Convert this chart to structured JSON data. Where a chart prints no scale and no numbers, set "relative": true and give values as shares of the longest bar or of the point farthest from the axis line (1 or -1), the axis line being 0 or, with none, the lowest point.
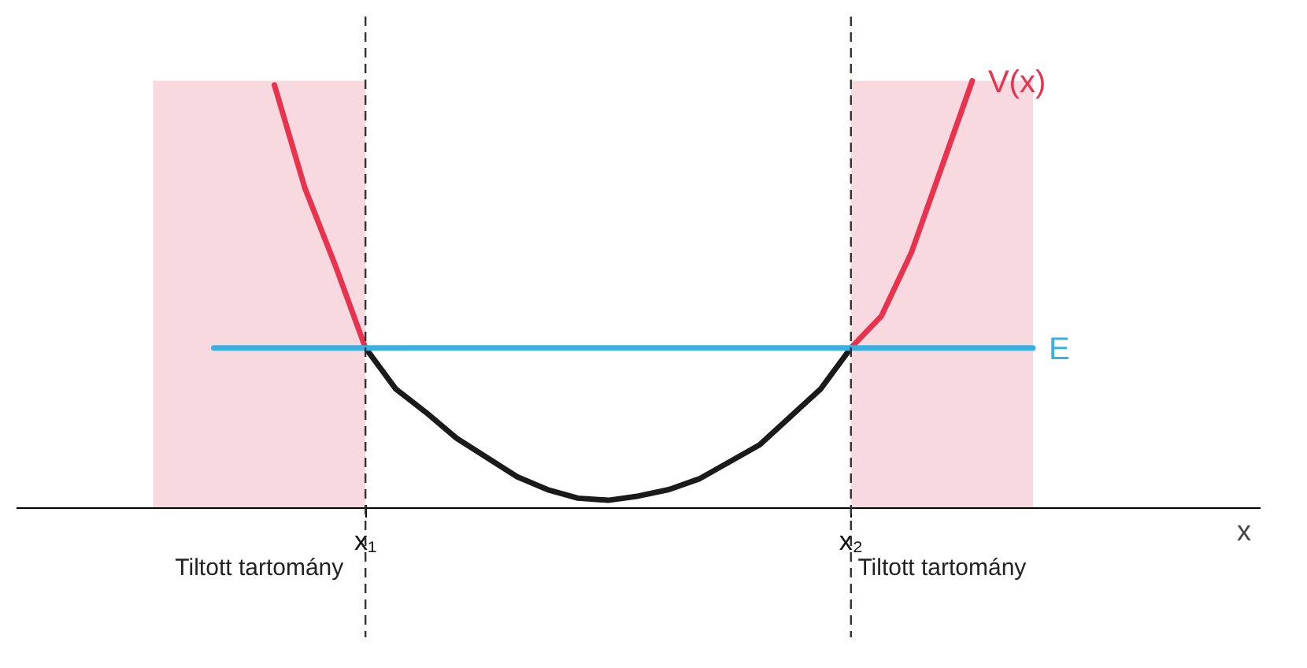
{
  "chart_data": {
    "type": "line",
    "relative": true,
    "xlabel": "x",
    "categories": [
      null,
      null,
      null,
      null,
      null,
      null,
      null,
      null,
      null,
      null,
      null,
      "x₁",
      null,
      null,
      null,
      null,
      null,
      null,
      null,
      null,
      null,
      null,
      null,
      null,
      null,
      null,
      null,
      "x₂",
      null,
      null,
      null,
      null,
      null,
      null,
      null,
      null,
      null,
      null,
      null,
      null,
      null
    ],
    "tick_labels": "x",
    "grid": false,
    "marker": "none",
    "line_style": "solid",
    "series": [
      {
        "type": "area",
        "name": "Tiltott tartomány",
        "color": "#f6d5dc",
        "values": [
          null,
          null,
          null,
          null,
          1.0,
          1.0,
          1.0,
          1.0,
          1.0,
          1.0,
          1.0,
          1.0,
          null,
          null,
          null,
          null,
          null,
          null,
          null,
          null,
          null,
          null,
          null,
          null,
          null,
          null,
          null,
          null,
          null,
          null,
          null,
          null,
          null,
          null,
          null,
          null,
          null,
          null,
          null,
          null,
          null
        ]
      },
      {
        "type": "area",
        "name": "Tiltott tartomány",
        "color": "#f6d5dc",
        "values": [
          null,
          null,
          null,
          null,
          null,
          null,
          null,
          null,
          null,
          null,
          null,
          null,
          null,
          null,
          null,
          null,
          null,
          null,
          null,
          null,
          null,
          null,
          null,
          null,
          null,
          null,
          null,
          1.0,
          1.0,
          1.0,
          1.0,
          1.0,
          1.0,
          1.0,
          null,
          null,
          null,
          null,
          null,
          null,
          null
        ]
      },
      {
        "color": "#e8334f",
        "values": [
          null,
          null,
          null,
          null,
          null,
          null,
          null,
          null,
          0.99,
          0.75,
          0.57,
          0.376,
          null,
          null,
          null,
          null,
          null,
          null,
          null,
          null,
          null,
          null,
          null,
          null,
          null,
          null,
          null,
          null,
          null,
          null,
          null,
          null,
          null,
          null,
          null,
          null,
          null,
          null,
          null,
          null,
          null
        ]
      },
      {
        "color": "#1a1a1a",
        "values": [
          null,
          null,
          null,
          null,
          null,
          null,
          null,
          null,
          null,
          null,
          null,
          0.376,
          0.28,
          0.225,
          0.165,
          0.12,
          0.075,
          0.045,
          0.025,
          0.02,
          0.03,
          0.045,
          0.07,
          0.11,
          0.15,
          0.215,
          0.28,
          0.376,
          null,
          null,
          null,
          null,
          null,
          null,
          null,
          null,
          null,
          null,
          null,
          null,
          null
        ]
      },
      {
        "name": "V(x)",
        "color": "#e8334f",
        "values": [
          null,
          null,
          null,
          null,
          null,
          null,
          null,
          null,
          null,
          null,
          null,
          null,
          null,
          null,
          null,
          null,
          null,
          null,
          null,
          null,
          null,
          null,
          null,
          null,
          null,
          null,
          null,
          0.376,
          0.45,
          0.6,
          0.8,
          1.0,
          null,
          null,
          null,
          null,
          null,
          null,
          null,
          null,
          null
        ]
      },
      {
        "name": "E",
        "color": "#3ab0e0",
        "values": [
          null,
          null,
          null,
          null,
          null,
          null,
          0.376,
          0.376,
          0.376,
          0.376,
          0.376,
          0.376,
          0.376,
          0.376,
          0.376,
          0.376,
          0.376,
          0.376,
          0.376,
          0.376,
          0.376,
          0.376,
          0.376,
          0.376,
          0.376,
          0.376,
          0.376,
          0.376,
          0.376,
          0.376,
          0.376,
          0.376,
          0.376,
          0.376,
          null,
          null,
          null,
          null,
          null,
          null,
          null
        ]
      }
    ],
    "ref_lines": [
      {
        "axis": "x",
        "value": "x₁",
        "color": "#333333",
        "line_style": "dashed"
      },
      {
        "axis": "x",
        "value": "x₂",
        "color": "#333333",
        "line_style": "dashed"
      }
    ]
  }
}
